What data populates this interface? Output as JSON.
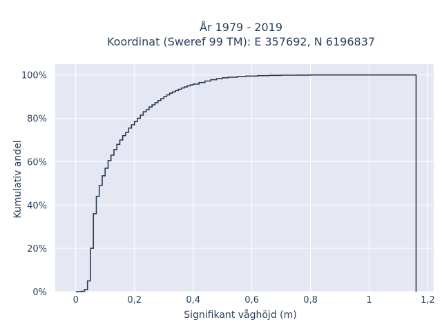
{
  "chart_data": {
    "type": "line",
    "subtype": "cumulative-step",
    "title_line1": "År 1979 - 2019",
    "title_line2": "Koordinat (Sweref 99 TM): E 357692, N 6196837",
    "xlabel": "Signifikant våghöjd (m)",
    "ylabel": "Kumulativ andel",
    "xlim": [
      -0.07,
      1.22
    ],
    "ylim": [
      0,
      1.05
    ],
    "grid": true,
    "plot_background": "#e5e8f3",
    "line_color": "#2a3a4f",
    "x_ticks": [
      0,
      0.2,
      0.4,
      0.6,
      0.8,
      1.0,
      1.2
    ],
    "x_tick_labels": [
      "0",
      "0,2",
      "0,4",
      "0,6",
      "0,8",
      "1",
      "1,2"
    ],
    "y_ticks": [
      0,
      0.2,
      0.4,
      0.6,
      0.8,
      1.0
    ],
    "y_tick_labels": [
      "0%",
      "20%",
      "40%",
      "60%",
      "80%",
      "100%"
    ],
    "series": [
      {
        "x": [
          0,
          0.02,
          0.03,
          0.04,
          0.05,
          0.06,
          0.07,
          0.08,
          0.09,
          0.1,
          0.11,
          0.12,
          0.13,
          0.14,
          0.15,
          0.16,
          0.17,
          0.18,
          0.19,
          0.2,
          0.21,
          0.22,
          0.23,
          0.24,
          0.25,
          0.26,
          0.27,
          0.28,
          0.29,
          0.3,
          0.31,
          0.32,
          0.33,
          0.34,
          0.35,
          0.36,
          0.37,
          0.38,
          0.39,
          0.4,
          0.42,
          0.44,
          0.46,
          0.48,
          0.5,
          0.52,
          0.55,
          0.58,
          0.62,
          0.66,
          0.7,
          0.75,
          0.8,
          1.16
        ],
        "y": [
          0,
          0.002,
          0.01,
          0.05,
          0.2,
          0.36,
          0.44,
          0.49,
          0.535,
          0.57,
          0.605,
          0.63,
          0.655,
          0.68,
          0.7,
          0.72,
          0.735,
          0.755,
          0.77,
          0.785,
          0.8,
          0.815,
          0.83,
          0.84,
          0.852,
          0.862,
          0.872,
          0.882,
          0.891,
          0.9,
          0.908,
          0.916,
          0.922,
          0.928,
          0.934,
          0.94,
          0.945,
          0.95,
          0.954,
          0.958,
          0.965,
          0.972,
          0.978,
          0.983,
          0.987,
          0.99,
          0.993,
          0.995,
          0.997,
          0.998,
          0.999,
          0.9995,
          1.0,
          1.0
        ]
      }
    ]
  }
}
